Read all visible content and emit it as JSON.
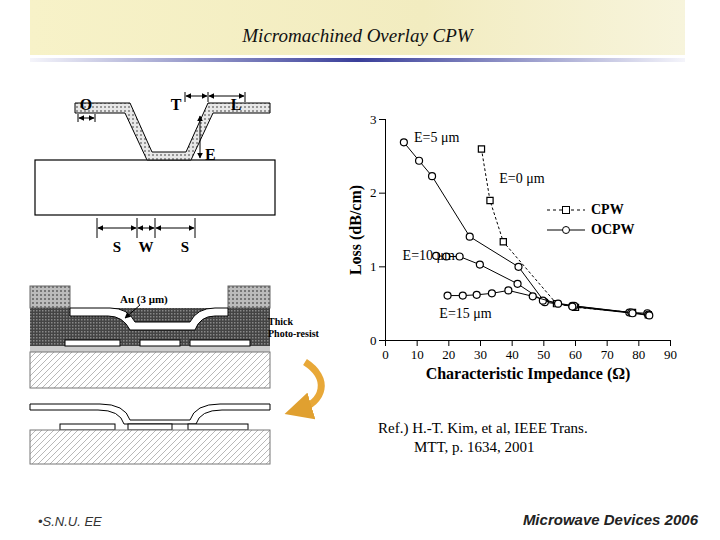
{
  "chart_data": {
    "type": "line",
    "x_label": "Characteristic Impedance (Ω)",
    "y_label": "Loss (dB/cm)",
    "xlim": [
      0,
      90
    ],
    "xticks": [
      0,
      10,
      20,
      30,
      40,
      50,
      60,
      70,
      80,
      90
    ],
    "ylim": [
      0,
      3
    ],
    "yticks": [
      0,
      1,
      2,
      3
    ],
    "grid": false,
    "legend": "right",
    "series": [
      {
        "name": "CPW",
        "color": "#000000",
        "marker": "square",
        "line_style": "dotted",
        "x": [
          30.3,
          33,
          37.2,
          54,
          60,
          78,
          83
        ],
        "values": [
          2.6,
          1.9,
          1.34,
          0.5,
          0.45,
          0.38,
          0.35
        ]
      },
      {
        "name": "OCPW",
        "color": "#000000",
        "marker": "circle",
        "line_style": "solid",
        "x": [
          5.8,
          10.6,
          14.7,
          26.6,
          42,
          50.3,
          59,
          77,
          82.7
        ],
        "values": [
          2.69,
          2.44,
          2.23,
          1.41,
          1.0,
          0.52,
          0.47,
          0.38,
          0.37
        ]
      },
      {
        "name": "OCPW",
        "color": "#000000",
        "marker": "circle",
        "line_style": "solid",
        "x": [
          16,
          19.2,
          23.4,
          29.8,
          41.7,
          49.7,
          59.6,
          77.6,
          83
        ],
        "values": [
          1.15,
          1.14,
          1.14,
          1.03,
          0.77,
          0.54,
          0.47,
          0.38,
          0.35
        ]
      },
      {
        "name": "OCPW",
        "color": "#000000",
        "marker": "circle",
        "line_style": "solid",
        "x": [
          19.6,
          24.4,
          28.8,
          33.6,
          38.8,
          46.5,
          54.5,
          59,
          78,
          83.3
        ],
        "values": [
          0.61,
          0.61,
          0.62,
          0.64,
          0.68,
          0.6,
          0.5,
          0.46,
          0.37,
          0.34
        ]
      }
    ],
    "annotations": [
      {
        "text": "E=5 μm",
        "x": 9,
        "y": 2.75
      },
      {
        "text": "E=0 μm",
        "x": 35.9,
        "y": 2.2
      },
      {
        "text": "E=10 μm",
        "x": 5.4,
        "y": 1.15
      },
      {
        "text": "E=15 μm",
        "x": 17,
        "y": 0.37
      }
    ]
  },
  "slide": {
    "title": "Micromachined Overlay CPW",
    "diagram": {
      "dimension_labels": [
        "O",
        "T",
        "L",
        "E",
        "S",
        "W",
        "S"
      ],
      "metal_label": "Au (3 μm)",
      "resist_label": [
        "Thick",
        "Photo-resist"
      ]
    },
    "reference": [
      "Ref.) H.-T. Kim, et al, IEEE Trans.",
      "MTT, p. 1634, 2001"
    ],
    "footer_left": "•S.N.U. EE",
    "footer_right": "Microwave Devices 2006"
  }
}
